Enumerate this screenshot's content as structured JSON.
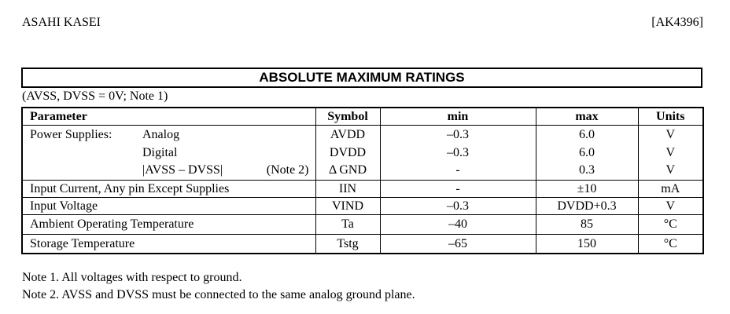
{
  "header": {
    "company": "ASAHI KASEI",
    "part": "[AK4396]"
  },
  "title": "ABSOLUTE MAXIMUM RATINGS",
  "condition": "(AVSS, DVSS = 0V; Note 1)",
  "table": {
    "headers": [
      "Parameter",
      "Symbol",
      "min",
      "max",
      "Units"
    ],
    "power_supplies": {
      "label": "Power Supplies:",
      "rows": [
        {
          "parameter": "Analog",
          "symbol": "AVDD",
          "min": "–0.3",
          "max": "6.0",
          "units": "V"
        },
        {
          "parameter": "Digital",
          "symbol": "DVDD",
          "min": "–0.3",
          "max": "6.0",
          "units": "V"
        },
        {
          "parameter": "|AVSS – DVSS|",
          "note": "(Note 2)",
          "symbol": "Δ GND",
          "min": "-",
          "max": "0.3",
          "units": "V"
        }
      ]
    },
    "rows": [
      {
        "parameter": "Input Current, Any pin Except Supplies",
        "symbol": "IIN",
        "min": "-",
        "max": "±10",
        "units": "mA"
      },
      {
        "parameter": "Input Voltage",
        "symbol": "VIND",
        "min": "–0.3",
        "max": "DVDD+0.3",
        "units": "V"
      },
      {
        "parameter": "Ambient Operating Temperature",
        "symbol": "Ta",
        "min": "–40",
        "max": "85",
        "units": "°C"
      },
      {
        "parameter": "Storage Temperature",
        "symbol": "Tstg",
        "min": "–65",
        "max": "150",
        "units": "°C"
      }
    ]
  },
  "notes": [
    "Note 1. All voltages with respect to ground.",
    "Note 2. AVSS and DVSS must be connected to the same analog ground plane."
  ]
}
